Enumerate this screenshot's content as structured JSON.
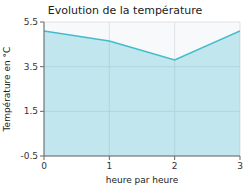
{
  "chart_data": {
    "type": "area",
    "title": "Evolution de la température",
    "xlabel": "heure par heure",
    "ylabel": "Température en °C",
    "x": [
      0,
      1,
      2,
      3
    ],
    "values": [
      5.1,
      4.65,
      3.8,
      5.1
    ],
    "color": "#44bbcc",
    "xlim": [
      0,
      3
    ],
    "ylim": [
      -0.5,
      5.5
    ],
    "xticks": [
      0,
      1,
      2,
      3
    ],
    "yticks": [
      -0.5,
      1.5,
      3.5,
      5.5
    ],
    "grid": true
  }
}
